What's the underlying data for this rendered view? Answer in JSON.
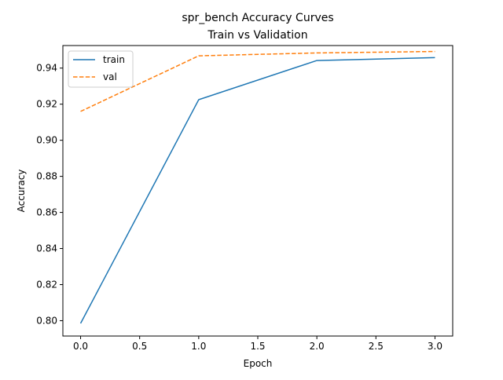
{
  "chart_data": {
    "type": "line",
    "title": "spr_bench Accuracy Curves",
    "subtitle": "Train vs Validation",
    "xlabel": "Epoch",
    "ylabel": "Accuracy",
    "xlim": [
      -0.15,
      3.15
    ],
    "ylim": [
      0.7915,
      0.9525
    ],
    "xticks": [
      0.0,
      0.5,
      1.0,
      1.5,
      2.0,
      2.5,
      3.0
    ],
    "xtick_labels": [
      "0.0",
      "0.5",
      "1.0",
      "1.5",
      "2.0",
      "2.5",
      "3.0"
    ],
    "yticks": [
      0.8,
      0.82,
      0.84,
      0.86,
      0.88,
      0.9,
      0.92,
      0.94
    ],
    "ytick_labels": [
      "0.80",
      "0.82",
      "0.84",
      "0.86",
      "0.88",
      "0.90",
      "0.92",
      "0.94"
    ],
    "grid": false,
    "legend_position": "top-left",
    "x": [
      0,
      1,
      2,
      3
    ],
    "series": [
      {
        "name": "train",
        "values": [
          0.7985,
          0.9225,
          0.9442,
          0.9458
        ],
        "color": "#1f77b4",
        "style": "solid"
      },
      {
        "name": "val",
        "values": [
          0.916,
          0.9468,
          0.9484,
          0.9492
        ],
        "color": "#ff7f0e",
        "style": "dashed"
      }
    ]
  }
}
